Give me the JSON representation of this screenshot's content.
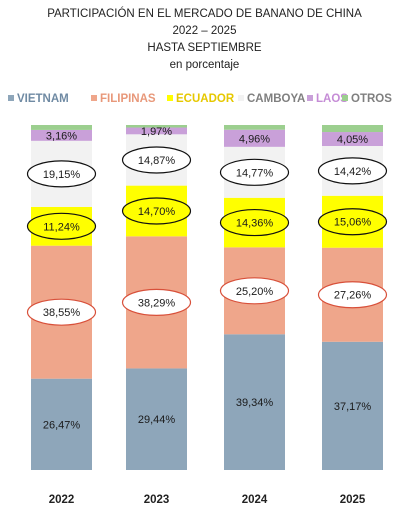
{
  "title": {
    "line1": "PARTICIPACIÓN EN EL MERCADO DE BANANO DE CHINA",
    "line2": "2022 – 2025",
    "line3": "HASTA SEPTIEMBRE",
    "line4": "en porcentaje"
  },
  "colors": {
    "VIETNAM": "#8ea6ba",
    "FILIPINAS": "#efa68b",
    "ECUADOR": "#ffff00",
    "CAMBOYA": "#f2f2f2",
    "LAOS": "#c9a0d9",
    "OTROS": "#9ccf8f"
  },
  "legend_text_colors": {
    "VIETNAM": "#6f8aa3",
    "FILIPINAS": "#e8987a",
    "ECUADOR": "#e6c800",
    "CAMBOYA": "#7f7f7f",
    "LAOS": "#c58cd6",
    "OTROS": "#7f7f7f"
  },
  "chart_data": {
    "type": "bar",
    "stacked": true,
    "legend_position": "top",
    "categories": [
      "2022",
      "2023",
      "2024",
      "2025"
    ],
    "ylim": [
      0,
      100
    ],
    "series": [
      {
        "name": "VIETNAM",
        "values": [
          26.47,
          29.44,
          39.34,
          37.17
        ],
        "labels": [
          "26,47%",
          "29,44%",
          "39,34%",
          "37,17%"
        ]
      },
      {
        "name": "FILIPINAS",
        "values": [
          38.55,
          38.29,
          25.2,
          27.26
        ],
        "labels": [
          "38,55%",
          "38,29%",
          "25,20%",
          "27,26%"
        ]
      },
      {
        "name": "ECUADOR",
        "values": [
          11.24,
          14.7,
          14.36,
          15.06
        ],
        "labels": [
          "11,24%",
          "14,70%",
          "14,36%",
          "15,06%"
        ]
      },
      {
        "name": "CAMBOYA",
        "values": [
          19.15,
          14.87,
          14.77,
          14.42
        ],
        "labels": [
          "19,15%",
          "14,87%",
          "14,77%",
          "14,42%"
        ]
      },
      {
        "name": "LAOS",
        "values": [
          3.16,
          1.97,
          4.96,
          4.05
        ],
        "labels": [
          "3,16%",
          "1,97%",
          "4,96%",
          "4,05%"
        ]
      },
      {
        "name": "OTROS",
        "values": [
          1.43,
          0.73,
          1.37,
          2.04
        ]
      }
    ]
  }
}
